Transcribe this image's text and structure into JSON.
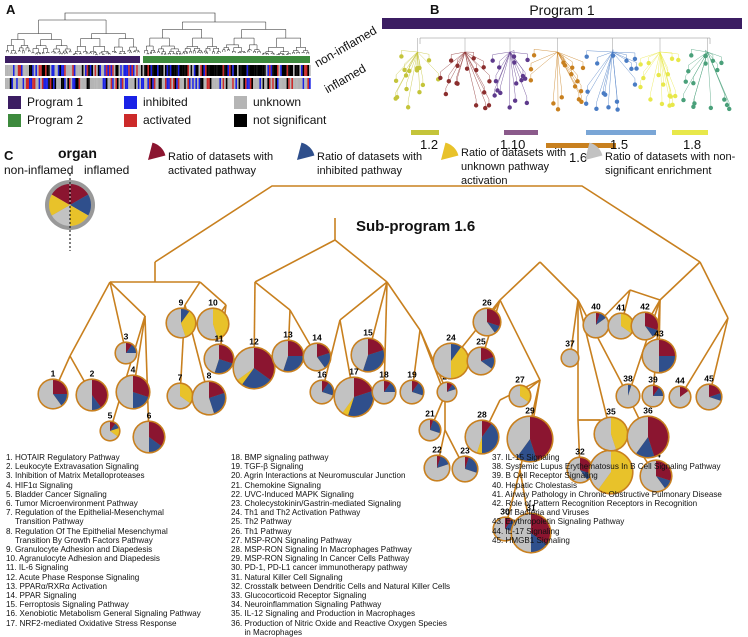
{
  "panels": {
    "a": "A",
    "b": "B",
    "c": "C"
  },
  "panel_a": {
    "row_labels": [
      "non-inflamed",
      "inflamed"
    ],
    "legend": [
      {
        "label": "Program 1",
        "color": "#3b1d62"
      },
      {
        "label": "inhibited",
        "color": "#1a22e6"
      },
      {
        "label": "unknown",
        "color": "#b5b5b5"
      },
      {
        "label": "Program 2",
        "color": "#3d8a3d"
      },
      {
        "label": "activated",
        "color": "#cc2a2a"
      },
      {
        "label": "not significant",
        "color": "#000000"
      }
    ]
  },
  "panel_b": {
    "title": "Program 1",
    "bar_color": "#3b1d62",
    "subprograms": [
      {
        "label": "1.2",
        "color": "#c4c43a"
      },
      {
        "label": "1.10",
        "color": "#8b5a8b"
      },
      {
        "label": "1.5",
        "color": "#7aa6d6"
      },
      {
        "label": "1.8",
        "color": "#e8e84a"
      },
      {
        "label": "1.6",
        "color": "#c8801f"
      }
    ]
  },
  "panel_c": {
    "organ_title": "organ",
    "organ_left": "non-inflamed",
    "organ_right": "inflamed",
    "subprogram_title": "Sub-program 1.6",
    "legend": [
      {
        "label": "Ratio of datasets with activated pathway",
        "color": "#8b1530"
      },
      {
        "label": "Ratio of datasets with inhibited pathway",
        "color": "#2f4f8c"
      },
      {
        "label": "Ratio of datasets with unknown pathway activation",
        "color": "#e8c22a"
      },
      {
        "label": "Ratio of datasets with non-significant enrichment",
        "color": "#c2c2c2"
      }
    ],
    "colors": {
      "branch": "#c8801f",
      "activated": "#8b1530",
      "inhibited": "#2f4f8c",
      "unknown": "#e8c22a",
      "nonsig": "#c2c2c2"
    },
    "nodes": [
      {
        "id": "1",
        "a": 0.25,
        "i": 0.15,
        "u": 0,
        "n": 0.6
      },
      {
        "id": "2",
        "a": 0.4,
        "i": 0.1,
        "u": 0,
        "n": 0.5
      },
      {
        "id": "3",
        "a": 0.1,
        "i": 0.15,
        "u": 0,
        "n": 0.75
      },
      {
        "id": "4",
        "a": 0.3,
        "i": 0.2,
        "u": 0,
        "n": 0.5
      },
      {
        "id": "5",
        "a": 0.1,
        "i": 0.1,
        "u": 0.15,
        "n": 0.65
      },
      {
        "id": "6",
        "a": 0.35,
        "i": 0.15,
        "u": 0,
        "n": 0.5
      },
      {
        "id": "7",
        "a": 0,
        "i": 0,
        "u": 0.35,
        "n": 0.65
      },
      {
        "id": "8",
        "a": 0.2,
        "i": 0.25,
        "u": 0,
        "n": 0.55
      },
      {
        "id": "9",
        "a": 0,
        "i": 0.1,
        "u": 0.35,
        "n": 0.55
      },
      {
        "id": "10",
        "a": 0,
        "i": 0,
        "u": 0.45,
        "n": 0.55
      },
      {
        "id": "11",
        "a": 0.3,
        "i": 0.25,
        "u": 0,
        "n": 0.45
      },
      {
        "id": "12",
        "a": 0.35,
        "i": 0.25,
        "u": 0.05,
        "n": 0.35
      },
      {
        "id": "13",
        "a": 0.25,
        "i": 0.3,
        "u": 0,
        "n": 0.45
      },
      {
        "id": "14",
        "a": 0.2,
        "i": 0.2,
        "u": 0,
        "n": 0.6
      },
      {
        "id": "15",
        "a": 0.2,
        "i": 0.35,
        "u": 0,
        "n": 0.45
      },
      {
        "id": "16",
        "a": 0.1,
        "i": 0.2,
        "u": 0,
        "n": 0.7
      },
      {
        "id": "17",
        "a": 0.2,
        "i": 0.35,
        "u": 0.05,
        "n": 0.4
      },
      {
        "id": "18",
        "a": 0.1,
        "i": 0.15,
        "u": 0,
        "n": 0.75
      },
      {
        "id": "19",
        "a": 0.1,
        "i": 0.2,
        "u": 0,
        "n": 0.7
      },
      {
        "id": "20",
        "a": 0.1,
        "i": 0.1,
        "u": 0,
        "n": 0.8
      },
      {
        "id": "21",
        "a": 0.05,
        "i": 0.25,
        "u": 0,
        "n": 0.7
      },
      {
        "id": "22",
        "a": 0.05,
        "i": 0.15,
        "u": 0,
        "n": 0.8
      },
      {
        "id": "23",
        "a": 0.05,
        "i": 0.25,
        "u": 0,
        "n": 0.7
      },
      {
        "id": "24",
        "a": 0,
        "i": 0.1,
        "u": 0.4,
        "n": 0.5
      },
      {
        "id": "25",
        "a": 0.2,
        "i": 0.15,
        "u": 0,
        "n": 0.65
      },
      {
        "id": "26",
        "a": 0.3,
        "i": 0.1,
        "u": 0,
        "n": 0.6
      },
      {
        "id": "27",
        "a": 0,
        "i": 0,
        "u": 0.35,
        "n": 0.65
      },
      {
        "id": "28",
        "a": 0.1,
        "i": 0.4,
        "u": 0.05,
        "n": 0.45
      },
      {
        "id": "29",
        "a": 0.45,
        "i": 0.15,
        "u": 0,
        "n": 0.4
      },
      {
        "id": "30",
        "a": 0.1,
        "i": 0.2,
        "u": 0,
        "n": 0.7
      },
      {
        "id": "31",
        "a": 0.35,
        "i": 0.15,
        "u": 0,
        "n": 0.5
      },
      {
        "id": "32",
        "a": 0.3,
        "i": 0.1,
        "u": 0,
        "n": 0.6
      },
      {
        "id": "33",
        "a": 0,
        "i": 0,
        "u": 0.6,
        "n": 0.4
      },
      {
        "id": "34",
        "a": 0.3,
        "i": 0.1,
        "u": 0,
        "n": 0.6
      },
      {
        "id": "35",
        "a": 0,
        "i": 0,
        "u": 0.45,
        "n": 0.55
      },
      {
        "id": "36",
        "a": 0.45,
        "i": 0.15,
        "u": 0,
        "n": 0.4
      },
      {
        "id": "37",
        "a": 0,
        "i": 0,
        "u": 0,
        "n": 1
      },
      {
        "id": "38",
        "a": 0,
        "i": 0.05,
        "u": 0,
        "n": 0.95
      },
      {
        "id": "39",
        "a": 0.1,
        "i": 0.15,
        "u": 0,
        "n": 0.75
      },
      {
        "id": "40",
        "a": 0.05,
        "i": 0.1,
        "u": 0,
        "n": 0.85
      },
      {
        "id": "41",
        "a": 0,
        "i": 0,
        "u": 0.35,
        "n": 0.65
      },
      {
        "id": "42",
        "a": 0.3,
        "i": 0.1,
        "u": 0,
        "n": 0.6
      },
      {
        "id": "43",
        "a": 0.25,
        "i": 0.25,
        "u": 0,
        "n": 0.5
      },
      {
        "id": "44",
        "a": 0.15,
        "i": 0,
        "u": 0,
        "n": 0.85
      },
      {
        "id": "45",
        "a": 0.2,
        "i": 0.1,
        "u": 0,
        "n": 0.7
      }
    ],
    "pathways": [
      [
        "1. HOTAIR Regulatory Pathway",
        "2. Leukocyte Extravasation Signaling",
        "3. Inhibition of Matrix Metalloproteases",
        "4. HIF1α Signaling",
        "5. Bladder Cancer Signaling",
        "6. Tumor Microenvironment Pathway",
        "7. Regulation of the Epithelial-Mesenchymal\n    Transition Pathway",
        "8. Regulation Of The Epithelial Mesenchymal\n    Transition By Growth Factors Pathway",
        "9. Granulocyte Adhesion and Diapedesis",
        "10. Agranulocyte Adhesion and Diapedesis",
        "11. IL-6 Signaling",
        "12. Acute Phase Response Signaling",
        "13. PPARα/RXRα Activation",
        "14. PPAR Signaling",
        "15. Ferroptosis Signaling Pathway",
        "16. Xenobiotic Metabolism General Signaling Pathway",
        "17. NRF2-mediated Oxidative Stress Response"
      ],
      [
        "18. BMP signaling pathway",
        "19. TGF-β Signaling",
        "20. Agrin Interactions at Neuromuscular Junction",
        "21. Chemokine Signaling",
        "22. UVC-Induced MAPK Signaling",
        "23. Cholecystokinin/Gastrin-mediated Signaling",
        "24. Th1 and Th2 Activation Pathway",
        "25. Th2 Pathway",
        "26. Th1 Pathway",
        "27. MSP-RON Signaling Pathway",
        "28. MSP-RON Signaling In Macrophages Pathway",
        "29. MSP-RON Signaling In Cancer Cells Pathway",
        "30. PD-1, PD-L1 cancer immunotherapy pathway",
        "31. Natural Killer Cell Signaling",
        "32. Crosstalk between Dendritic Cells and Natural Killer Cells",
        "33. Glucocorticoid Receptor Signaling",
        "34. Neuroinflammation Signaling Pathway",
        "35. IL-12 Signaling and Production in Macrophages",
        "36. Production of Nitric Oxide and Reactive Oxygen Species\n      in Macrophages"
      ],
      [
        "37. IL-15 Signaling",
        "38. Systemic Lupus Erythematosus In B Cell Signaling Pathway",
        "39. B Cell Receptor Signaling",
        "40. Hepatic Cholestasis",
        "41. Airway Pathology in Chronic Obstructive Pulmonary Disease",
        "42. Role of Pattern Recognition Receptors in Recognition\n      of Bacteria and Viruses",
        "43. Erythropoietin Signaling Pathway",
        "44. IL-17 Signaling",
        "45. HMGB1 Signaling"
      ]
    ]
  }
}
